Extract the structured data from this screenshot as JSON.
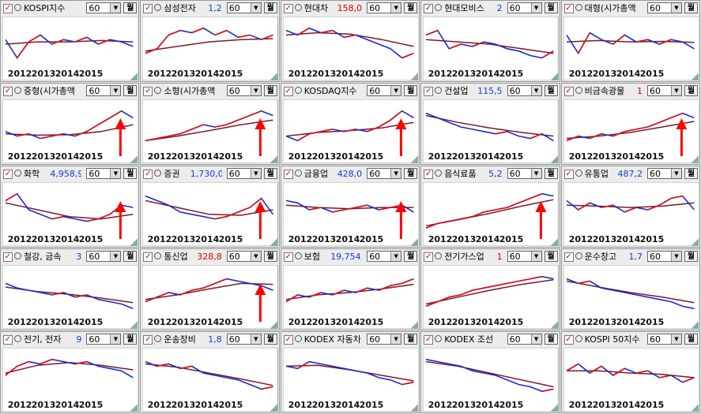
{
  "period": "60",
  "button": "월",
  "x_labels": [
    "2012",
    "2013",
    "2014",
    "2015"
  ],
  "panels": [
    {
      "name": "KOSPI지수",
      "price": [
        60,
        20,
        55,
        70,
        50,
        60,
        55,
        65,
        50,
        60,
        55,
        45
      ],
      "ma": [
        50,
        55,
        55,
        58,
        55
      ]
    },
    {
      "name": "삼성전자",
      "value": "1,2",
      "value_color": "#1040d0",
      "price": [
        30,
        40,
        70,
        80,
        75,
        85,
        70,
        80,
        65,
        70,
        60,
        70
      ],
      "ma": [
        35,
        45,
        55,
        60,
        62
      ]
    },
    {
      "name": "현대차",
      "value": "158,0",
      "value_color": "#e00000",
      "price": [
        80,
        70,
        85,
        75,
        80,
        65,
        70,
        60,
        50,
        40,
        20,
        30
      ],
      "ma": [
        70,
        75,
        72,
        60,
        45
      ]
    },
    {
      "name": "현대모비스",
      "value": "2",
      "value_color": "#1040d0",
      "price": [
        70,
        80,
        40,
        50,
        45,
        55,
        50,
        40,
        35,
        25,
        20,
        35
      ],
      "ma": [
        60,
        55,
        50,
        40,
        30
      ]
    },
    {
      "name": "대형(시가총액",
      "price": [
        70,
        30,
        75,
        60,
        50,
        70,
        55,
        60,
        50,
        60,
        55,
        40
      ],
      "ma": [
        55,
        58,
        55,
        56,
        54
      ]
    },
    {
      "name": "중형(시가총액",
      "arrow": true,
      "price": [
        40,
        30,
        35,
        25,
        30,
        35,
        30,
        40,
        55,
        70,
        85,
        70
      ],
      "ma": [
        35,
        32,
        33,
        40,
        55
      ]
    },
    {
      "name": "소형(시가총액",
      "arrow": true,
      "price": [
        20,
        25,
        30,
        35,
        45,
        55,
        50,
        55,
        65,
        75,
        85,
        75
      ],
      "ma": [
        20,
        30,
        42,
        55,
        65
      ]
    },
    {
      "name": "KOSDAQ지수",
      "arrow": true,
      "price": [
        30,
        20,
        35,
        40,
        45,
        40,
        45,
        40,
        50,
        65,
        85,
        70
      ],
      "ma": [
        30,
        38,
        42,
        48,
        60
      ]
    },
    {
      "name": "건설업",
      "value": "115,5",
      "value_color": "#1040d0",
      "price": [
        80,
        70,
        60,
        50,
        45,
        40,
        35,
        40,
        30,
        25,
        35,
        20
      ],
      "ma": [
        75,
        60,
        48,
        38,
        30
      ]
    },
    {
      "name": "비금속광물",
      "value": "1",
      "value_color": "#e00000",
      "arrow": true,
      "price": [
        20,
        30,
        25,
        35,
        30,
        40,
        45,
        50,
        60,
        70,
        80,
        70
      ],
      "ma": [
        25,
        30,
        38,
        50,
        62
      ]
    },
    {
      "name": "화학",
      "value": "4,958,9",
      "value_color": "#1040d0",
      "arrow": true,
      "price": [
        70,
        85,
        50,
        40,
        30,
        35,
        30,
        25,
        30,
        40,
        60,
        55
      ],
      "ma": [
        65,
        50,
        35,
        30,
        40
      ]
    },
    {
      "name": "증권",
      "value": "1,730,0",
      "value_color": "#1040d0",
      "arrow": true,
      "price": [
        80,
        70,
        60,
        45,
        40,
        35,
        30,
        35,
        45,
        55,
        75,
        40
      ],
      "ma": [
        70,
        55,
        40,
        38,
        50
      ]
    },
    {
      "name": "금융업",
      "value": "428,0",
      "value_color": "#1040d0",
      "arrow": true,
      "price": [
        70,
        65,
        50,
        55,
        45,
        50,
        55,
        60,
        50,
        55,
        60,
        45
      ],
      "ma": [
        60,
        55,
        52,
        55,
        55
      ]
    },
    {
      "name": "음식료품",
      "value": "5,2",
      "value_color": "#1040d0",
      "arrow": true,
      "price": [
        10,
        20,
        25,
        30,
        35,
        45,
        50,
        55,
        65,
        75,
        85,
        80
      ],
      "ma": [
        15,
        28,
        42,
        58,
        72
      ]
    },
    {
      "name": "유통업",
      "value": "487,2",
      "value_color": "#1040d0",
      "price": [
        70,
        50,
        65,
        55,
        60,
        45,
        55,
        50,
        60,
        75,
        80,
        50
      ],
      "ma": [
        60,
        58,
        55,
        58,
        65
      ]
    },
    {
      "name": "철강, 금속",
      "value": "3",
      "value_color": "#1040d0",
      "price": [
        70,
        60,
        55,
        50,
        45,
        50,
        40,
        45,
        35,
        30,
        25,
        15
      ],
      "ma": [
        62,
        52,
        46,
        38,
        28
      ]
    },
    {
      "name": "통신업",
      "value": "328,8",
      "value_color": "#e00000",
      "arrow": true,
      "price": [
        30,
        40,
        50,
        45,
        55,
        60,
        70,
        80,
        75,
        70,
        65,
        55
      ],
      "ma": [
        35,
        45,
        58,
        70,
        68
      ]
    },
    {
      "name": "보험",
      "value": "19,754,",
      "value_color": "#1040d0",
      "price": [
        30,
        45,
        40,
        50,
        45,
        55,
        50,
        60,
        55,
        65,
        70,
        80
      ],
      "ma": [
        35,
        45,
        50,
        58,
        68
      ]
    },
    {
      "name": "전기가스업",
      "value": "1",
      "value_color": "#e00000",
      "price": [
        20,
        30,
        40,
        45,
        55,
        60,
        65,
        70,
        75,
        80,
        85,
        80
      ],
      "ma": [
        25,
        40,
        55,
        68,
        78
      ]
    },
    {
      "name": "운수창고",
      "value": "1,7",
      "value_color": "#1040d0",
      "price": [
        80,
        70,
        75,
        60,
        55,
        50,
        45,
        40,
        35,
        30,
        20,
        15
      ],
      "ma": [
        75,
        62,
        50,
        40,
        28
      ]
    },
    {
      "name": "전기, 전자",
      "value": "9",
      "value_color": "#1040d0",
      "price": [
        50,
        70,
        80,
        75,
        85,
        80,
        75,
        80,
        70,
        65,
        60,
        45
      ],
      "ma": [
        55,
        72,
        78,
        72,
        62
      ]
    },
    {
      "name": "운송장비",
      "value": "1,8",
      "value_color": "#1040d0",
      "price": [
        80,
        70,
        75,
        65,
        70,
        55,
        50,
        45,
        40,
        30,
        20,
        25
      ],
      "ma": [
        75,
        68,
        55,
        42,
        28
      ]
    },
    {
      "name": "KODEX 자동차",
      "price": [
        70,
        65,
        80,
        75,
        70,
        65,
        60,
        55,
        45,
        40,
        30,
        35
      ],
      "ma": [
        70,
        72,
        62,
        50,
        38
      ]
    },
    {
      "name": "KODEX 조선",
      "price": [
        85,
        80,
        75,
        70,
        60,
        55,
        50,
        40,
        30,
        25,
        15,
        20
      ],
      "ma": [
        80,
        70,
        55,
        40,
        25
      ]
    },
    {
      "name": "KOSPI 50지수",
      "price": [
        60,
        75,
        55,
        70,
        50,
        65,
        55,
        60,
        45,
        50,
        35,
        45
      ],
      "ma": [
        60,
        60,
        55,
        52,
        45
      ]
    }
  ]
}
